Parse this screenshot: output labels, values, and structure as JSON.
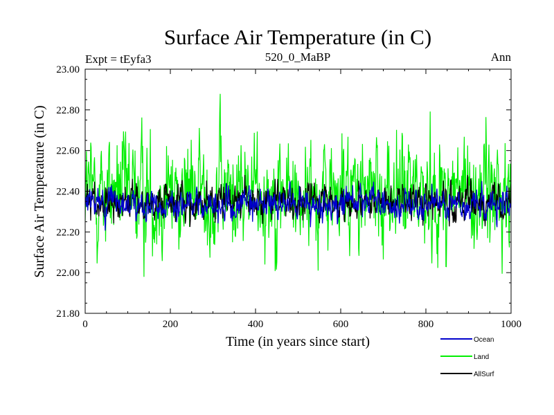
{
  "chart_data": {
    "type": "line",
    "title": "Surface Air Temperature (in C)",
    "subtitle_left": "Expt = tEyfa3",
    "subtitle_center": "520_0_MaBP",
    "subtitle_right": "Ann",
    "xlabel": "Time (in years since start)",
    "ylabel": "Surface Air Temperature (in C)",
    "xlim": [
      0,
      1000
    ],
    "ylim": [
      21.8,
      23.0
    ],
    "xticks": [
      0,
      200,
      400,
      600,
      800,
      1000
    ],
    "xtick_labels": [
      "0",
      "200",
      "400",
      "600",
      "800",
      "1000"
    ],
    "yticks": [
      21.8,
      22.0,
      22.2,
      22.4,
      22.6,
      22.8,
      23.0
    ],
    "ytick_labels": [
      "21.80",
      "22.00",
      "22.20",
      "22.40",
      "22.60",
      "22.80",
      "23.00"
    ],
    "grid": false,
    "legend_position": "bottom-right",
    "series": [
      {
        "name": "Land",
        "color": "#00ee00",
        "mean": 22.39,
        "sd": 0.14,
        "min": 21.93,
        "max": 22.92,
        "n": 1000
      },
      {
        "name": "AllSurf",
        "color": "#000000",
        "mean": 22.345,
        "sd": 0.045,
        "min": 22.18,
        "max": 22.48,
        "n": 1000
      },
      {
        "name": "Ocean",
        "color": "#0000cc",
        "mean": 22.335,
        "sd": 0.038,
        "min": 22.18,
        "max": 22.45,
        "n": 1000
      }
    ],
    "legend": [
      {
        "label": "Ocean",
        "color": "#0000cc"
      },
      {
        "label": "Land",
        "color": "#00ee00"
      },
      {
        "label": "AllSurf",
        "color": "#000000"
      }
    ]
  }
}
